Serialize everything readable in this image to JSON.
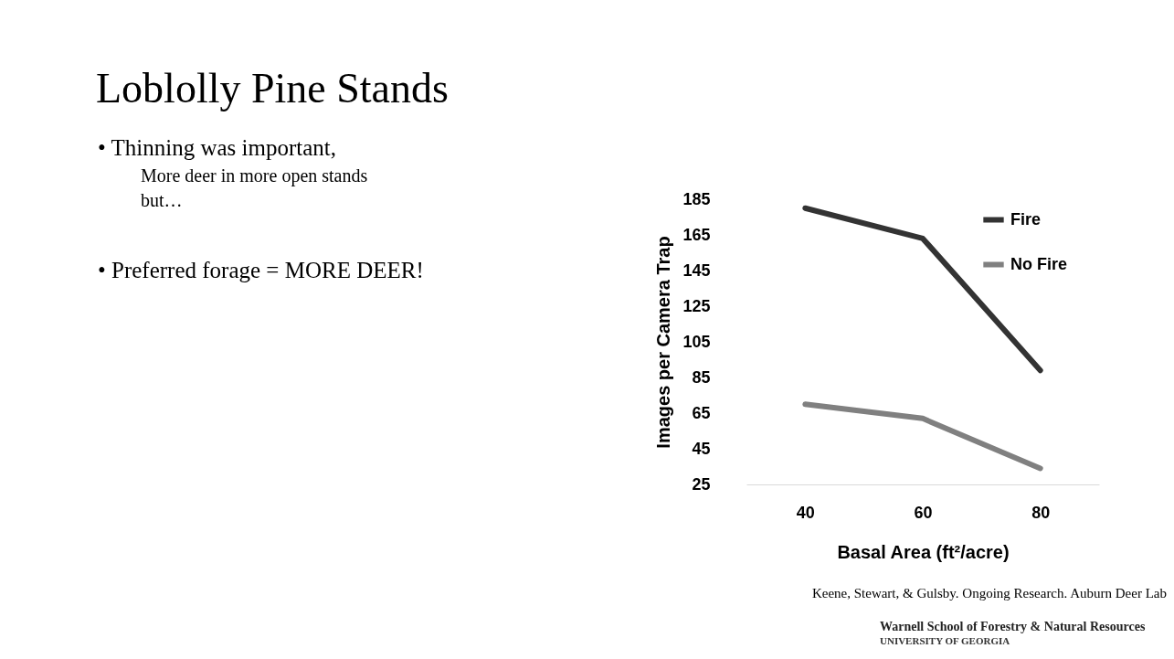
{
  "chart_data": {
    "type": "line",
    "title": "Loblolly Pine Stands",
    "xlabel": "Basal Area (ft²/acre)",
    "ylabel": "Images per Camera Trap",
    "categories": [
      "40",
      "60",
      "80"
    ],
    "series": [
      {
        "name": "Fire",
        "color": "#333333",
        "values": [
          180,
          163,
          89
        ]
      },
      {
        "name": "No Fire",
        "color": "#808080",
        "values": [
          70,
          62,
          34
        ]
      }
    ],
    "ylim": [
      25,
      185
    ],
    "yticks": [
      25,
      45,
      65,
      85,
      105,
      125,
      145,
      165,
      185
    ],
    "grid": false,
    "legend": "top right",
    "marker": "none",
    "line_style": "solid",
    "annotations": [
      "• Thinning was important,",
      "More deer in more open stands",
      "but…",
      "• Preferred forage = MORE DEER!",
      "Keene,  Stewart, & Gulsby. Ongoing Research. Auburn Deer Lab",
      "Warnell School of Forestry & Natural Resources",
      "UNIVERSITY OF GEORGIA"
    ]
  }
}
